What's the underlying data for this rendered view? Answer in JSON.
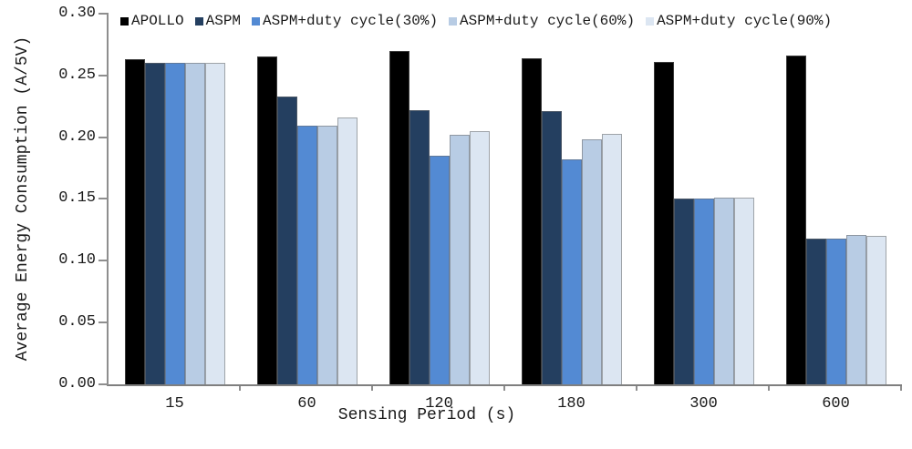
{
  "chart_data": {
    "type": "bar",
    "title": "",
    "xlabel": "Sensing Period (s)",
    "ylabel": "Average Energy Consumption (A/5V)",
    "ylim": [
      0,
      0.3
    ],
    "grid": false,
    "legend_position": "top-left-horizontal",
    "ytick_labels": [
      "0.00",
      "0.05",
      "0.10",
      "0.15",
      "0.20",
      "0.25",
      "0.30"
    ],
    "categories": [
      "15",
      "60",
      "120",
      "180",
      "300",
      "600"
    ],
    "series": [
      {
        "name": "APOLLO",
        "color": "#000000",
        "values": [
          0.263,
          0.265,
          0.27,
          0.264,
          0.261,
          0.266
        ]
      },
      {
        "name": "ASPM",
        "color": "#243F60",
        "values": [
          0.26,
          0.233,
          0.222,
          0.221,
          0.15,
          0.118
        ]
      },
      {
        "name": "ASPM+duty cycle(30%)",
        "color": "#538AD3",
        "values": [
          0.26,
          0.209,
          0.185,
          0.182,
          0.15,
          0.118
        ]
      },
      {
        "name": "ASPM+duty cycle(60%)",
        "color": "#B8CCE4",
        "values": [
          0.26,
          0.209,
          0.202,
          0.198,
          0.151,
          0.121
        ]
      },
      {
        "name": "ASPM+duty cycle(90%)",
        "color": "#DCE6F2",
        "values": [
          0.26,
          0.216,
          0.205,
          0.203,
          0.151,
          0.12
        ]
      }
    ],
    "axis_color": "#8e8e8e"
  }
}
